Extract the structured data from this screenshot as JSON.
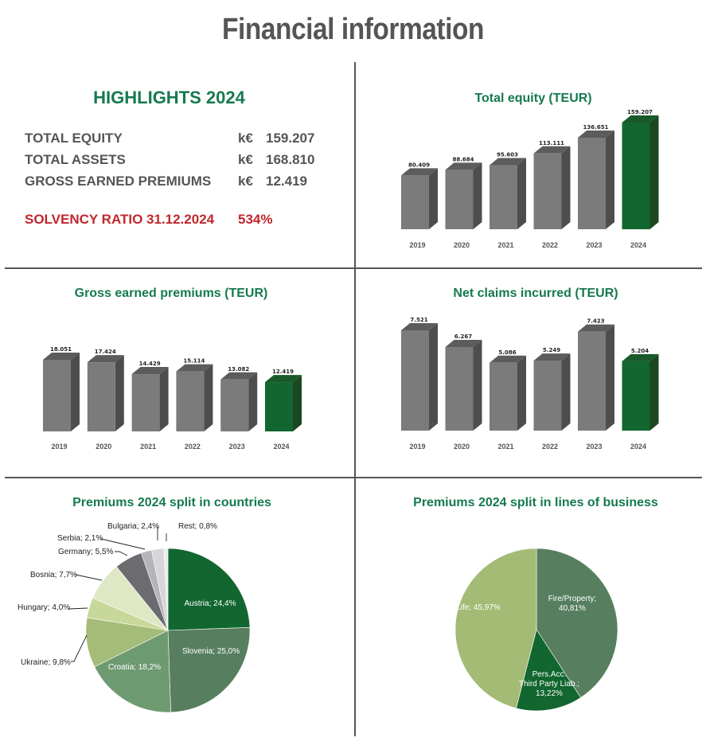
{
  "page": {
    "title": "Financial information"
  },
  "highlights": {
    "title": "HIGHLIGHTS 2024",
    "rows": [
      {
        "label": "TOTAL EQUITY",
        "unit": "k€",
        "value": "159.207"
      },
      {
        "label": "TOTAL ASSETS",
        "unit": "k€",
        "value": "168.810"
      },
      {
        "label": "GROSS EARNED PREMIUMS",
        "unit": "k€",
        "value": "12.419"
      }
    ],
    "solvency": {
      "label": "SOLVENCY RATIO 31.12.2024",
      "value": "534%"
    }
  },
  "colors": {
    "title_green": "#157a4f",
    "bar_gray_front": "#7b7b7b",
    "bar_gray_side": "#4d4d4d",
    "bar_gray_top": "#5c5c5c",
    "bar_green_front": "#12662f",
    "bar_green_side": "#1b4722",
    "bar_green_top": "#1a5a2a",
    "solvency_red": "#c0272d",
    "divider": "#555555"
  },
  "chart_data": [
    {
      "id": "total_equity",
      "type": "bar",
      "title": "Total equity (TEUR)",
      "categories": [
        "2019",
        "2020",
        "2021",
        "2022",
        "2023",
        "2024"
      ],
      "values": [
        80409,
        88684,
        95603,
        113111,
        136651,
        159207
      ],
      "labels": [
        "80.409",
        "88.684",
        "95.603",
        "113.111",
        "136.651",
        "159.207"
      ],
      "highlight_index": 5,
      "xlabel": "",
      "ylabel": "",
      "grid": false,
      "style": "3d-column"
    },
    {
      "id": "gross_earned_premiums",
      "type": "bar",
      "title": "Gross earned premiums (TEUR)",
      "categories": [
        "2019",
        "2020",
        "2021",
        "2022",
        "2023",
        "2024"
      ],
      "values": [
        18051,
        17424,
        14429,
        15114,
        13082,
        12419
      ],
      "labels": [
        "18.051",
        "17.424",
        "14.429",
        "15.114",
        "13.082",
        "12.419"
      ],
      "highlight_index": 5,
      "xlabel": "",
      "ylabel": "",
      "grid": false,
      "style": "3d-column"
    },
    {
      "id": "net_claims_incurred",
      "type": "bar",
      "title": "Net claims incurred (TEUR)",
      "categories": [
        "2019",
        "2020",
        "2021",
        "2022",
        "2023",
        "2024"
      ],
      "values": [
        7521,
        6267,
        5086,
        5249,
        7423,
        5204
      ],
      "labels": [
        "7.521",
        "6.267",
        "5.086",
        "5.249",
        "7.423",
        "5.204"
      ],
      "highlight_index": 5,
      "xlabel": "",
      "ylabel": "",
      "grid": false,
      "style": "3d-column"
    },
    {
      "id": "premiums_countries",
      "type": "pie",
      "title": "Premiums 2024 split in countries",
      "slices": [
        {
          "name": "Austria",
          "value": 24.4,
          "label": "Austria; 24,4%",
          "color": "#12662f"
        },
        {
          "name": "Slovenia",
          "value": 25.0,
          "label": "Slovenia; 25,0%",
          "color": "#577f5f"
        },
        {
          "name": "Croatia",
          "value": 18.2,
          "label": "Croatia; 18,2%",
          "color": "#6e9a72"
        },
        {
          "name": "Ukraine",
          "value": 9.8,
          "label": "Ukraine; 9,8%",
          "color": "#a5bb78"
        },
        {
          "name": "Hungary",
          "value": 4.0,
          "label": "Hungary; 4,0%",
          "color": "#c8d89a"
        },
        {
          "name": "Bosnia",
          "value": 7.7,
          "label": "Bosnia; 7,7%",
          "color": "#dfe8c4"
        },
        {
          "name": "Germany",
          "value": 5.5,
          "label": "Germany; 5,5%",
          "color": "#6b6b70"
        },
        {
          "name": "Serbia",
          "value": 2.1,
          "label": "Serbia; 2,1%",
          "color": "#b5b5b8"
        },
        {
          "name": "Bulgaria",
          "value": 2.4,
          "label": "Bulgaria; 2,4%",
          "color": "#d6d6d8"
        },
        {
          "name": "Rest",
          "value": 0.8,
          "label": "Rest; 0,8%",
          "color": "#ececec"
        }
      ]
    },
    {
      "id": "premiums_lines",
      "type": "pie",
      "title": "Premiums 2024 split in lines of business",
      "slices": [
        {
          "name": "Fire/Property",
          "value": 40.81,
          "label_lines": [
            "Fire/Property;",
            "40,81%"
          ],
          "color": "#577f5f"
        },
        {
          "name": "Pers.Acc. Third Party Liab.",
          "value": 13.22,
          "label_lines": [
            "Pers.Acc.",
            "Third Party Liab.;",
            "13,22%"
          ],
          "color": "#12662f"
        },
        {
          "name": "Life",
          "value": 45.97,
          "label_lines": [
            "Life; 45,97%"
          ],
          "color": "#a3bb75"
        }
      ]
    }
  ]
}
